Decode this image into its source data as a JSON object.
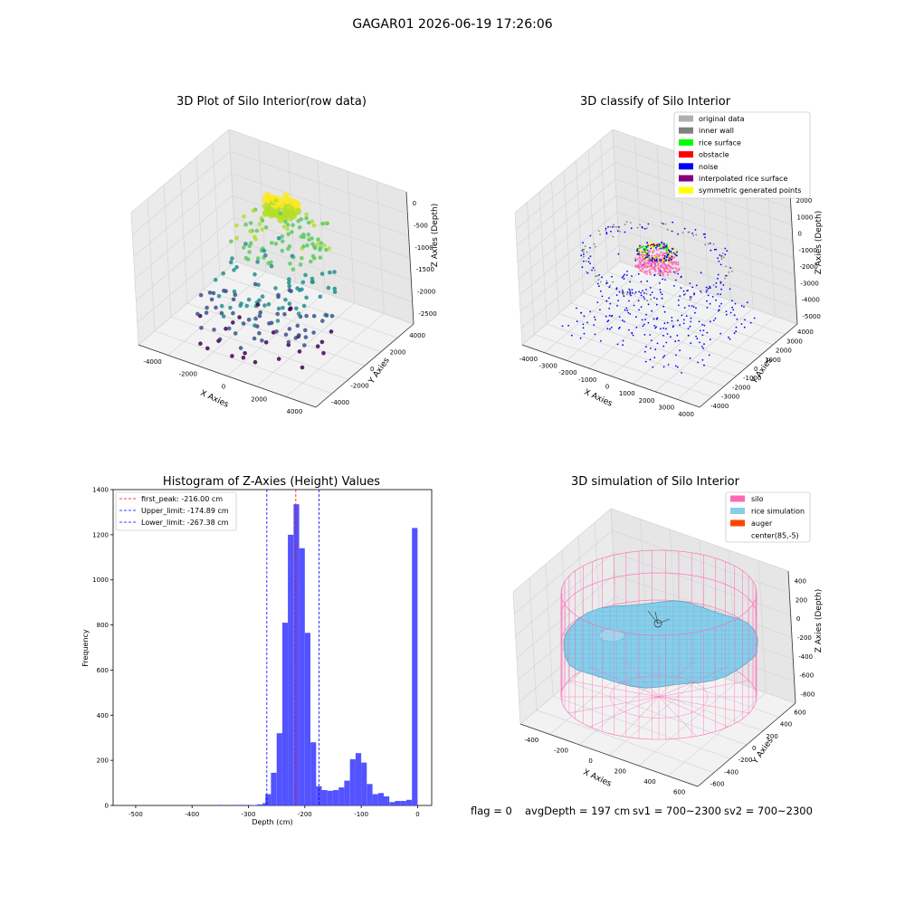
{
  "figure": {
    "suptitle": "GAGAR01 2026-06-19 17:26:06",
    "footer": {
      "flag": "flag = 0",
      "avg_depth": "avgDepth = 197 cm",
      "sv1": "sv1 = 700~2300",
      "sv2": "sv2 = 700~2300"
    }
  },
  "colors": {
    "histogram_bar": "#4a4aff",
    "first_peak_line": "#ff0000",
    "limit_lines": "#0000ff",
    "silo_wire": "#ff69b4",
    "rice_surface": "#87ceeb",
    "auger": "#ff4500",
    "pane_gray": "#f2f2f2",
    "grid": "#d6d6d6"
  },
  "chart_data": [
    {
      "type": "scatter",
      "projection": "3d",
      "title": "3D Plot of Silo Interior(row data)",
      "xlabel": "X Axies",
      "ylabel": "Y Axies",
      "zlabel": "Z Axies (Depth)",
      "xticks": [
        "-4000",
        "-2000",
        "0",
        "2000",
        "4000"
      ],
      "yticks": [
        "-4000",
        "-2000",
        "0",
        "2000",
        "4000"
      ],
      "zticks": [
        "0",
        "-500",
        "-1000",
        "-1500",
        "-2000",
        "-2500"
      ],
      "xlim": [
        -4500,
        4500
      ],
      "ylim": [
        -4500,
        4500
      ],
      "zlim": [
        -2700,
        100
      ],
      "colormap": "viridis",
      "point_clusters": [
        {
          "x": 0,
          "y": 1000,
          "z": -200,
          "count": 70
        },
        {
          "x": 0,
          "y": 1000,
          "z": -800,
          "count": 90
        },
        {
          "x": 0,
          "y": 0,
          "z": -1600,
          "count": 60
        },
        {
          "x": 0,
          "y": -1000,
          "z": -2300,
          "count": 80
        }
      ]
    },
    {
      "type": "scatter",
      "projection": "3d",
      "title": "3D classify of Silo Interior",
      "xlabel": "X Axies",
      "ylabel": "Y Axies",
      "zlabel": "Z Axies (Depth)",
      "xticks": [
        "-4000",
        "-3000",
        "-2000",
        "-1000",
        "0",
        "1000",
        "2000",
        "3000",
        "4000"
      ],
      "yticks": [
        "-4000",
        "-3000",
        "-2000",
        "-1000",
        "0",
        "1000",
        "2000",
        "3000",
        "4000"
      ],
      "zticks": [
        "2000",
        "1000",
        "0",
        "-1000",
        "-2000",
        "-3000",
        "-4000",
        "-5000"
      ],
      "legend_position": "top-right",
      "legend": [
        {
          "label": "original data",
          "color": "#b0b0b0"
        },
        {
          "label": "inner wall",
          "color": "#808080"
        },
        {
          "label": "rice surface",
          "color": "#00ff00"
        },
        {
          "label": "obstacle",
          "color": "#ff0000"
        },
        {
          "label": "noise",
          "color": "#0000ff"
        },
        {
          "label": "interpolated rice surface",
          "color": "#800080"
        },
        {
          "label": "symmetric generated points",
          "color": "#ffff00"
        }
      ]
    },
    {
      "type": "bar",
      "title": "Histogram of Z-Axies (Height) Values",
      "xlabel": "Depth (cm)",
      "ylabel": "Frequency",
      "xlim": [
        -540,
        25
      ],
      "ylim": [
        0,
        1400
      ],
      "xticks": [
        -500,
        -400,
        -300,
        -200,
        -100,
        0
      ],
      "yticks": [
        0,
        200,
        400,
        600,
        800,
        1000,
        1200,
        1400
      ],
      "bin_width": 10,
      "bins": [
        {
          "x": -350,
          "y": 3
        },
        {
          "x": -320,
          "y": 3
        },
        {
          "x": -310,
          "y": 3
        },
        {
          "x": -290,
          "y": 2
        },
        {
          "x": -280,
          "y": 5
        },
        {
          "x": -270,
          "y": 10
        },
        {
          "x": -265,
          "y": 50
        },
        {
          "x": -255,
          "y": 145
        },
        {
          "x": -245,
          "y": 320
        },
        {
          "x": -235,
          "y": 810
        },
        {
          "x": -225,
          "y": 1200
        },
        {
          "x": -215,
          "y": 1335
        },
        {
          "x": -205,
          "y": 1140
        },
        {
          "x": -195,
          "y": 765
        },
        {
          "x": -185,
          "y": 280
        },
        {
          "x": -175,
          "y": 85
        },
        {
          "x": -165,
          "y": 68
        },
        {
          "x": -155,
          "y": 65
        },
        {
          "x": -145,
          "y": 68
        },
        {
          "x": -135,
          "y": 80
        },
        {
          "x": -125,
          "y": 110
        },
        {
          "x": -115,
          "y": 205
        },
        {
          "x": -105,
          "y": 232
        },
        {
          "x": -95,
          "y": 190
        },
        {
          "x": -85,
          "y": 95
        },
        {
          "x": -75,
          "y": 50
        },
        {
          "x": -65,
          "y": 55
        },
        {
          "x": -55,
          "y": 40
        },
        {
          "x": -45,
          "y": 15
        },
        {
          "x": -35,
          "y": 20
        },
        {
          "x": -25,
          "y": 20
        },
        {
          "x": -15,
          "y": 25
        },
        {
          "x": -5,
          "y": 1230
        }
      ],
      "reference_lines": [
        {
          "label": "first_peak: -216.00 cm",
          "x": -216.0,
          "color": "#ff0000"
        },
        {
          "label": "Upper_limit: -174.89 cm",
          "x": -174.89,
          "color": "#0000ff"
        },
        {
          "label": "Lower_limit: -267.38 cm",
          "x": -267.38,
          "color": "#0000ff"
        }
      ],
      "legend_position": "top-left"
    },
    {
      "type": "area",
      "projection": "3d",
      "title": "3D simulation of Silo Interior",
      "xlabel": "X Axies",
      "ylabel": "Y Axies",
      "zlabel": "Z Axies (Depth)",
      "xticks": [
        "-400",
        "-200",
        "0",
        "200",
        "400",
        "600"
      ],
      "yticks": [
        "-600",
        "-400",
        "-200",
        "0",
        "200",
        "400",
        "600"
      ],
      "zticks": [
        "400",
        "200",
        "0",
        "-200",
        "-400",
        "-600",
        "-800"
      ],
      "legend_position": "top-right",
      "legend": [
        {
          "label": "silo",
          "color": "#ff69b4"
        },
        {
          "label": "rice simulation",
          "color": "#87ceeb"
        },
        {
          "label": "auger",
          "color": "#ff4500"
        },
        {
          "label": "center(85,-5)",
          "color": ""
        }
      ]
    }
  ]
}
